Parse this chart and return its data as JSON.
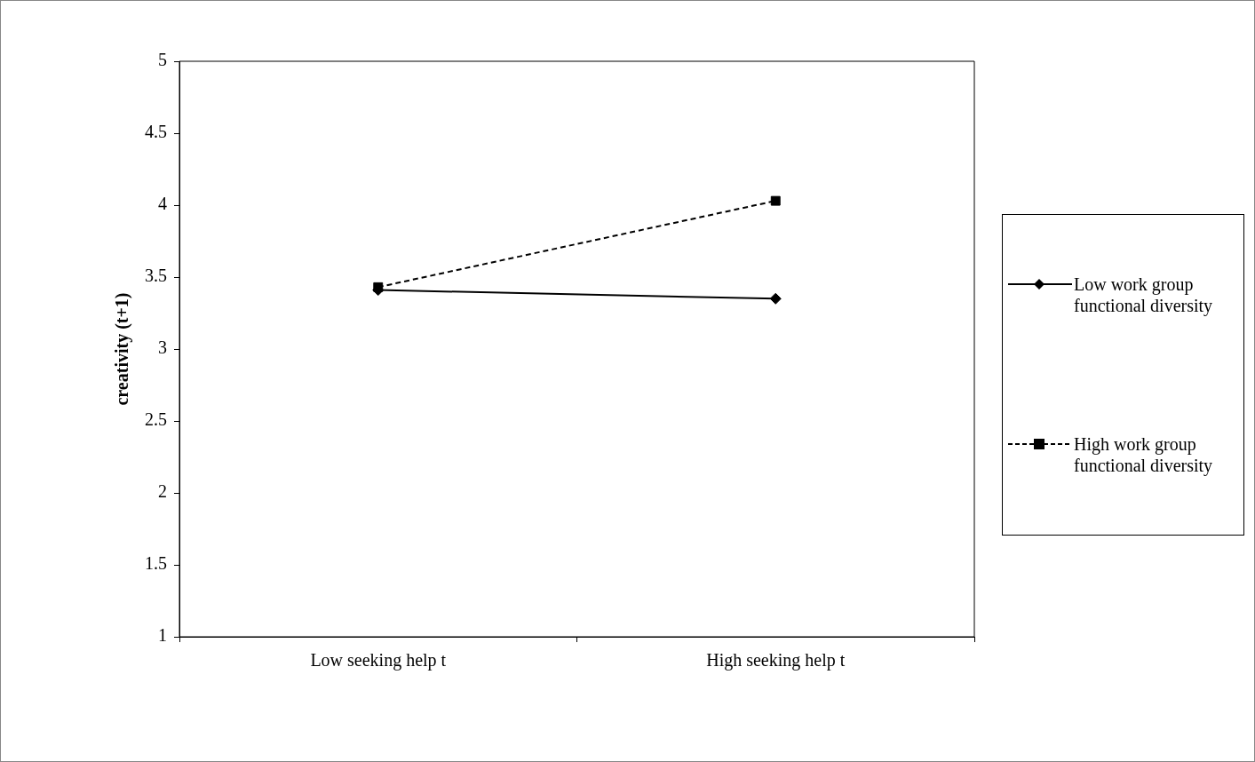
{
  "chart_data": {
    "type": "line",
    "ylabel": "creativity (t+1)",
    "categories": [
      "Low seeking help t",
      "High seeking help t"
    ],
    "ylim": [
      1,
      5
    ],
    "yticks": [
      1,
      1.5,
      2,
      2.5,
      3,
      3.5,
      4,
      4.5,
      5
    ],
    "grid": false,
    "legend": "right",
    "series": [
      {
        "name": "Low work group functional diversity",
        "color": "#000000",
        "values": [
          3.41,
          3.35
        ],
        "marker": "diamond",
        "line_style": "solid"
      },
      {
        "name": "High work group functional diversity",
        "color": "#000000",
        "values": [
          3.43,
          4.03
        ],
        "marker": "square",
        "line_style": "dashed"
      }
    ]
  }
}
